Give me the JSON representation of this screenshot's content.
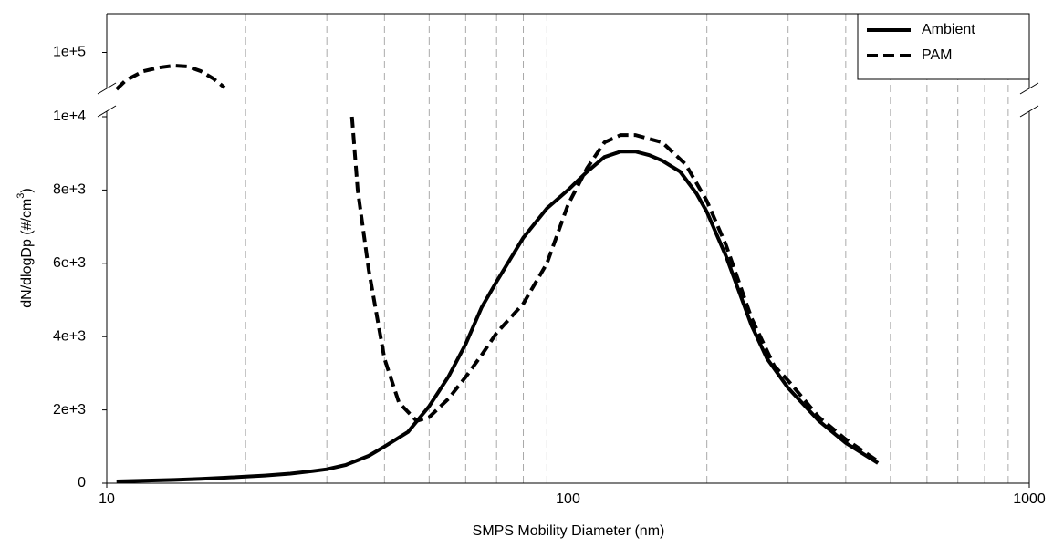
{
  "chart_data": {
    "type": "line",
    "xlabel": "SMPS Mobility Diameter (nm)",
    "ylabel": [
      "dN/dlogDp (#/cm",
      "3",
      ")"
    ],
    "xscale": "log",
    "xlim": [
      10,
      1000
    ],
    "xticks": [
      10,
      100,
      1000
    ],
    "xgrid": [
      20,
      30,
      40,
      50,
      60,
      70,
      80,
      90,
      200,
      300,
      400,
      500,
      600,
      700,
      800,
      900
    ],
    "ylim": [
      0,
      10000
    ],
    "yticks": [
      0,
      {
        "value": 2000,
        "label": "2e+3"
      },
      {
        "value": 4000,
        "label": "4e+3"
      },
      {
        "value": 6000,
        "label": "6e+3"
      },
      {
        "value": 8000,
        "label": "8e+3"
      },
      {
        "value": 10000,
        "label": "1e+4"
      }
    ],
    "legend": "upper right",
    "series": [
      {
        "name": "Ambient",
        "color": "#000000",
        "dash": false,
        "x": [
          10.5,
          12,
          14,
          16,
          18,
          20,
          22,
          25,
          28,
          30,
          33,
          37,
          40,
          45,
          50,
          55,
          60,
          65,
          70,
          80,
          90,
          100,
          110,
          120,
          130,
          140,
          150,
          160,
          175,
          190,
          200,
          220,
          250,
          270,
          300,
          350,
          400,
          470
        ],
        "values": [
          50,
          70,
          90,
          120,
          150,
          180,
          210,
          260,
          330,
          380,
          500,
          750,
          1000,
          1400,
          2100,
          2900,
          3800,
          4800,
          5500,
          6700,
          7500,
          8000,
          8500,
          8900,
          9050,
          9050,
          8950,
          8800,
          8500,
          7900,
          7400,
          6200,
          4300,
          3400,
          2600,
          1700,
          1100,
          550
        ]
      },
      {
        "name": "PAM",
        "color": "#000000",
        "dash": true,
        "x": [
          34,
          35,
          37,
          40,
          43,
          47,
          50,
          55,
          60,
          65,
          70,
          80,
          90,
          100,
          110,
          120,
          130,
          140,
          160,
          180,
          200,
          220,
          250,
          280,
          300,
          350,
          400,
          470
        ],
        "values": [
          10000,
          8000,
          5800,
          3400,
          2200,
          1700,
          1800,
          2300,
          2900,
          3500,
          4100,
          4900,
          6000,
          7600,
          8600,
          9300,
          9500,
          9500,
          9300,
          8700,
          7700,
          6500,
          4500,
          3200,
          2800,
          1800,
          1200,
          600
        ]
      }
    ],
    "upper_panel": {
      "ylim": [
        80000,
        120000
      ],
      "yticks": [
        {
          "value": 100000,
          "label": "1e+5"
        }
      ],
      "series": [
        {
          "color": "#000000",
          "dash": true,
          "x": [
            10.5,
            11,
            12,
            13,
            14,
            15,
            16,
            17,
            18
          ],
          "values": [
            81000,
            85600,
            90300,
            92200,
            93200,
            92700,
            90300,
            86600,
            81900
          ]
        }
      ]
    }
  }
}
